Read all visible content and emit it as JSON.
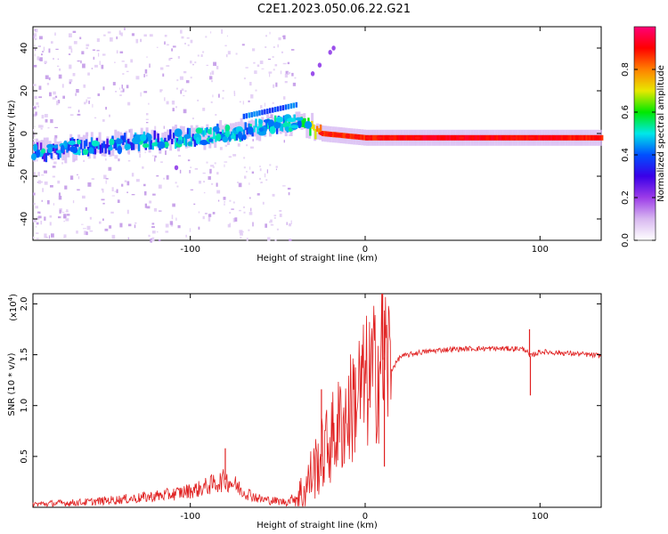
{
  "title": "C2E1.2023.050.06.22.G21",
  "chart_data": [
    {
      "type": "heatmap",
      "name": "spectrogram",
      "xlabel": "Height of straight line (km)",
      "ylabel": "Frequency (Hz)",
      "xlim": [
        -190,
        135
      ],
      "ylim": [
        -50,
        50
      ],
      "xticks": [
        -100,
        0,
        100
      ],
      "yticks": [
        -40,
        -20,
        0,
        20,
        40
      ],
      "colorbar": {
        "label": "Normalized spectral amplitude",
        "range": [
          0,
          1
        ],
        "ticks": [
          "0.0",
          "0.2",
          "0.4",
          "0.6",
          "0.8"
        ],
        "colors": [
          "#ffffff",
          "#d8b8f0",
          "#9c3ce8",
          "#3a00e8",
          "#0050ff",
          "#00e8e8",
          "#00e800",
          "#e8e800",
          "#ff8000",
          "#ff0000",
          "#ff0078"
        ]
      },
      "ridge": [
        {
          "x": -190,
          "f": -9,
          "amp": 0.3
        },
        {
          "x": -160,
          "f": -6,
          "amp": 0.33
        },
        {
          "x": -130,
          "f": -4,
          "amp": 0.36
        },
        {
          "x": -100,
          "f": -2,
          "amp": 0.38
        },
        {
          "x": -70,
          "f": 1,
          "amp": 0.4
        },
        {
          "x": -50,
          "f": 4,
          "amp": 0.42
        },
        {
          "x": -35,
          "f": 5,
          "amp": 0.45
        },
        {
          "x": -25,
          "f": 0,
          "amp": 0.85
        },
        {
          "x": 0,
          "f": -2,
          "amp": 0.88
        },
        {
          "x": 40,
          "f": -2,
          "amp": 0.92
        },
        {
          "x": 80,
          "f": -2,
          "amp": 0.9
        },
        {
          "x": 110,
          "f": -2,
          "amp": 0.9
        },
        {
          "x": 135,
          "f": -2,
          "amp": 0.88
        }
      ]
    },
    {
      "type": "line",
      "name": "snr",
      "xlabel": "Height of straight line (km)",
      "ylabel": "SNR (10 * v/v)",
      "yscale": "(x10",
      "yscale_exp": "4",
      "yscale_close": ")",
      "xlim": [
        -190,
        135
      ],
      "ylim": [
        0,
        21000
      ],
      "xticks": [
        -100,
        0,
        100
      ],
      "yticks": [
        {
          "v": 5000,
          "label": "0.5"
        },
        {
          "v": 10000,
          "label": "1.0"
        },
        {
          "v": 15000,
          "label": "1.5"
        },
        {
          "v": 20000,
          "label": "2.0"
        }
      ],
      "color": "#e02020",
      "series": [
        {
          "name": "SNR",
          "x": [
            -190,
            -160,
            -130,
            -110,
            -95,
            -85,
            -80,
            -75,
            -70,
            -60,
            -45,
            -35,
            -30,
            -25,
            -20,
            -15,
            -10,
            -5,
            0,
            5,
            10,
            12,
            15,
            20,
            30,
            45,
            60,
            80,
            88,
            92,
            94,
            100,
            120,
            135
          ],
          "y": [
            300,
            500,
            900,
            1300,
            1800,
            2400,
            2700,
            2300,
            1600,
            800,
            500,
            1500,
            3500,
            5000,
            6500,
            8000,
            9000,
            11000,
            12000,
            13000,
            14500,
            15000,
            13500,
            14800,
            15200,
            15500,
            15600,
            15600,
            15600,
            15500,
            14800,
            15300,
            15100,
            14900
          ]
        }
      ],
      "spikes": [
        {
          "x": -80,
          "y": 5800
        },
        {
          "x": -25,
          "y": 11600
        },
        {
          "x": 10,
          "y": 21000
        },
        {
          "x": 11,
          "y": 4000
        },
        {
          "x": 94,
          "y": 17500
        },
        {
          "x": 94.5,
          "y": 11000
        }
      ]
    }
  ]
}
